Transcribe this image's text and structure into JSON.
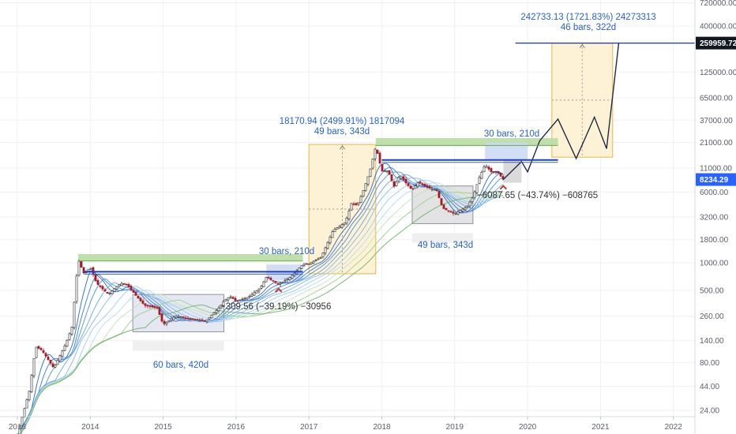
{
  "chart_data": {
    "type": "candlestick",
    "y_scale": "log",
    "y_ticks": [
      "720000.00",
      "400000.00",
      "125000.00",
      "65000.00",
      "37000.00",
      "21000.00",
      "11000.00",
      "6000.00",
      "3200.00",
      "1800.00",
      "1000.00",
      "500.00",
      "260.00",
      "140.00",
      "80.00",
      "44.00",
      "24.00"
    ],
    "x_ticks": [
      "2013",
      "2014",
      "2015",
      "2016",
      "2017",
      "2018",
      "2019",
      "2020",
      "2021",
      "2022"
    ],
    "price_badges": [
      {
        "label": "259959.72",
        "value": 259959.72,
        "color": "#131722"
      },
      {
        "label": "8234.29",
        "value": 8234.29,
        "color": "#2962ff"
      }
    ],
    "annotations": [
      {
        "line1": "242733.13 (1721.83%) 24273313",
        "line2": "46 bars, 322d"
      },
      {
        "line1": "18170.94 (2499.91%) 1817094",
        "line2": "49 bars, 343d"
      },
      {
        "line1": "30 bars, 210d",
        "line2": ""
      },
      {
        "line1": "30 bars, 210d",
        "line2": ""
      },
      {
        "line1": "−309.56 (−39.19%) −30956",
        "line2": ""
      },
      {
        "line1": "−6087.65 (−43.74%) −608765",
        "line2": ""
      },
      {
        "line1": "60 bars, 420d",
        "line2": ""
      },
      {
        "line1": "49 bars, 343d",
        "line2": ""
      }
    ],
    "price_path": [
      [
        "2013-01",
        13
      ],
      [
        "2013-03",
        40
      ],
      [
        "2013-04",
        120
      ],
      [
        "2013-05",
        110
      ],
      [
        "2013-07",
        70
      ],
      [
        "2013-09",
        130
      ],
      [
        "2013-10",
        200
      ],
      [
        "2013-11",
        1100
      ],
      [
        "2013-12",
        750
      ],
      [
        "2014-01",
        900
      ],
      [
        "2014-02",
        600
      ],
      [
        "2014-04",
        450
      ],
      [
        "2014-06",
        600
      ],
      [
        "2014-07",
        580
      ],
      [
        "2014-09",
        400
      ],
      [
        "2014-10",
        340
      ],
      [
        "2014-12",
        320
      ],
      [
        "2015-01",
        210
      ],
      [
        "2015-03",
        260
      ],
      [
        "2015-06",
        240
      ],
      [
        "2015-08",
        230
      ],
      [
        "2015-10",
        310
      ],
      [
        "2015-11",
        380
      ],
      [
        "2015-12",
        430
      ],
      [
        "2016-01",
        380
      ],
      [
        "2016-03",
        420
      ],
      [
        "2016-05",
        530
      ],
      [
        "2016-06",
        700
      ],
      [
        "2016-08",
        580
      ],
      [
        "2016-10",
        700
      ],
      [
        "2016-12",
        960
      ],
      [
        "2017-01",
        980
      ],
      [
        "2017-03",
        1150
      ],
      [
        "2017-05",
        2300
      ],
      [
        "2017-06",
        2500
      ],
      [
        "2017-07",
        2800
      ],
      [
        "2017-08",
        4500
      ],
      [
        "2017-09",
        4300
      ],
      [
        "2017-10",
        6400
      ],
      [
        "2017-11",
        10000
      ],
      [
        "2017-12",
        19000
      ],
      [
        "2018-01",
        10200
      ],
      [
        "2018-02",
        10300
      ],
      [
        "2018-03",
        6900
      ],
      [
        "2018-04",
        9200
      ],
      [
        "2018-05",
        7500
      ],
      [
        "2018-06",
        6300
      ],
      [
        "2018-07",
        7700
      ],
      [
        "2018-08",
        7000
      ],
      [
        "2018-09",
        6600
      ],
      [
        "2018-10",
        6300
      ],
      [
        "2018-11",
        4000
      ],
      [
        "2018-12",
        3700
      ],
      [
        "2019-01",
        3450
      ],
      [
        "2019-02",
        3800
      ],
      [
        "2019-03",
        4100
      ],
      [
        "2019-04",
        5300
      ],
      [
        "2019-05",
        8500
      ],
      [
        "2019-06",
        12000
      ],
      [
        "2019-07",
        10000
      ],
      [
        "2019-08",
        10000
      ],
      [
        "2019-09",
        8234
      ]
    ],
    "projection_path": [
      [
        "2019-09",
        8234
      ],
      [
        "2019-12",
        13000
      ],
      [
        "2020-01",
        10000
      ],
      [
        "2020-03",
        22000
      ],
      [
        "2020-06",
        38000
      ],
      [
        "2020-09",
        14000
      ],
      [
        "2020-12",
        40000
      ],
      [
        "2021-02",
        18000
      ],
      [
        "2021-04",
        260000
      ]
    ],
    "boxes": [
      {
        "kind": "measure",
        "from": "2014-08",
        "to": "2015-11",
        "lo": 175,
        "hi": 450,
        "fill": "#e3e6f0"
      },
      {
        "kind": "measure",
        "from": "2018-06",
        "to": "2019-04",
        "lo": 2700,
        "hi": 7000,
        "fill": "#e0e0e0"
      },
      {
        "kind": "range",
        "from": "2017-01",
        "to": "2017-12",
        "lo": 760,
        "hi": 20000,
        "fill": "#fdf1d2"
      },
      {
        "kind": "range",
        "from": "2020-05",
        "to": "2021-03",
        "lo": 14500,
        "hi": 260000,
        "fill": "#fdf1d2"
      },
      {
        "kind": "green-band",
        "from": "2013-11",
        "to": "2016-12",
        "lo": 1050,
        "hi": 1250,
        "fill": "#b9dba4"
      },
      {
        "kind": "green-band",
        "from": "2017-12",
        "to": "2020-06",
        "lo": 19500,
        "hi": 23500,
        "fill": "#b9dba4"
      },
      {
        "kind": "blue-zone",
        "from": "2016-06",
        "to": "2016-12",
        "lo": 640,
        "hi": 960,
        "fill": "#c9d8f5"
      },
      {
        "kind": "blue-zone",
        "from": "2019-06",
        "to": "2020-01",
        "lo": 13500,
        "hi": 21000,
        "fill": "#c9d8f5"
      },
      {
        "kind": "gray-zone",
        "from": "2019-09",
        "to": "2019-12",
        "lo": 7600,
        "hi": 13500,
        "fill": "#d6d6d6"
      }
    ],
    "h_lines": [
      {
        "from": "2013-12",
        "to": "2016-12",
        "value": 800,
        "color": "#1e3fc0"
      },
      {
        "from": "2018-01",
        "to": "2020-06",
        "value": 13500,
        "color": "#1e3fc0"
      },
      {
        "from": "2019-11",
        "to": "2022-05",
        "value": 259959.72,
        "color": "#1e3a8a"
      }
    ],
    "colors": {
      "bull": "#2b2b2b",
      "bear": "#9e1f2c",
      "ribbon": [
        "#2a66c9",
        "#3b7bd8",
        "#5090e0",
        "#6ba4e6",
        "#84b8ec",
        "#9fcaf0",
        "#b8d9f3",
        "#c5e0c0",
        "#9ccf8a",
        "#6cb36a"
      ],
      "grid": "#eef0f3",
      "annotation": "#2962c8"
    }
  }
}
